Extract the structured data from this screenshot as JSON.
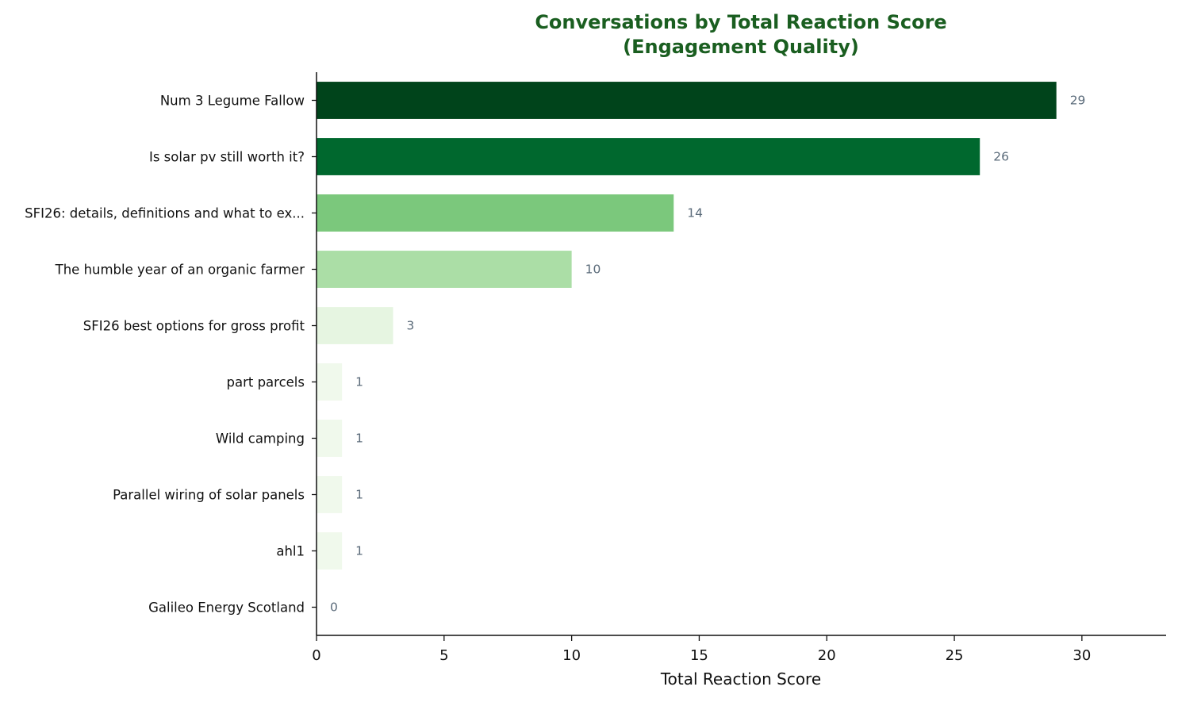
{
  "chart_data": {
    "type": "bar",
    "orientation": "horizontal",
    "title": "Conversations by Total Reaction Score",
    "subtitle": "(Engagement Quality)",
    "xlabel": "Total Reaction Score",
    "ylabel": "",
    "xlim": [
      0,
      33.3
    ],
    "xticks": [
      0,
      5,
      10,
      15,
      20,
      25,
      30
    ],
    "grid": false,
    "categories": [
      "Num 3 Legume Fallow",
      "Is solar pv still worth it?",
      "SFI26: details, definitions and what to ex...",
      "The humble year of an organic farmer",
      "SFI26 best options for gross profit",
      "part parcels",
      "Wild camping",
      "Parallel wiring of solar panels",
      "ahl1",
      "Galileo Energy Scotland"
    ],
    "values": [
      29,
      26,
      14,
      10,
      3,
      1,
      1,
      1,
      1,
      0
    ],
    "value_labels": [
      "29",
      "26",
      "14",
      "10",
      "3",
      "1",
      "1",
      "1",
      "1",
      "0"
    ],
    "bar_colors": [
      "#00441b",
      "#00682e",
      "#7bc87c",
      "#abdea6",
      "#e6f5e1",
      "#f0f9ec",
      "#f0f9ec",
      "#f0f9ec",
      "#f0f9ec",
      "#f7fcf5"
    ],
    "colors": {
      "title": "#1a5e20",
      "value_label": "#5b6b7a",
      "axis": "#111111"
    }
  }
}
